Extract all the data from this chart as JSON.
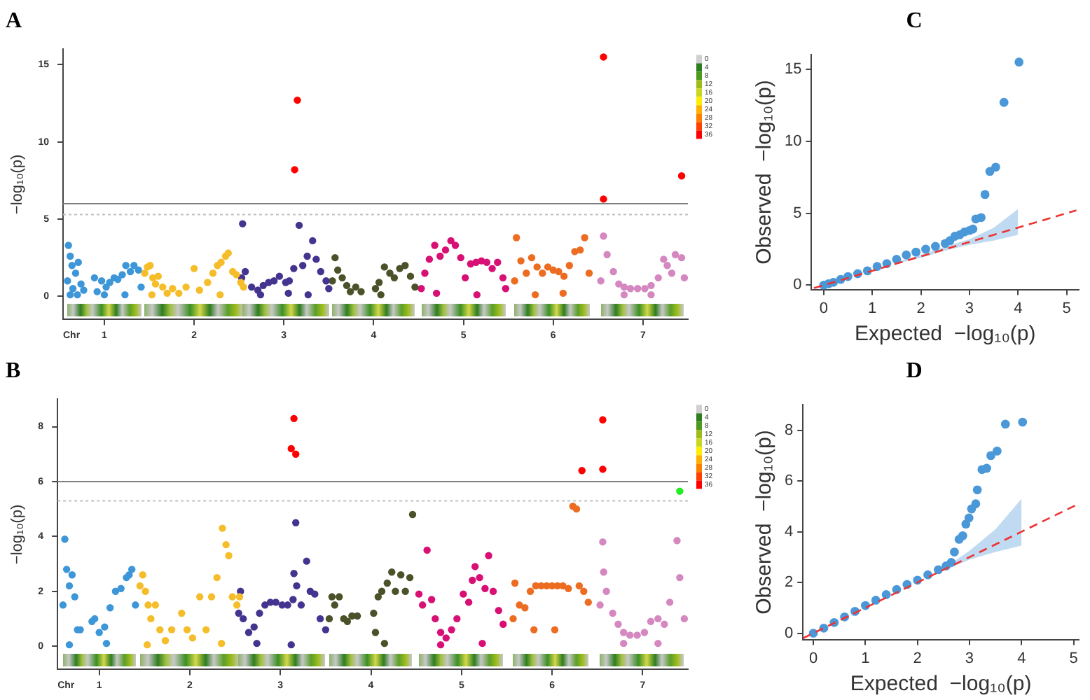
{
  "chart_data": [
    {
      "type": "scatter",
      "title": "A",
      "xlabel": "Chr",
      "ylabel": "−log₁₀(p)",
      "marker": "circle",
      "legend": false,
      "grid": false,
      "xlim": [
        0.54,
        7.5
      ],
      "xticks": [
        1,
        2,
        3,
        4,
        5,
        6,
        7
      ],
      "ylim": [
        -1.5,
        16
      ],
      "yticks": [
        0,
        5,
        10,
        15
      ],
      "clim": [
        0,
        36
      ],
      "cticks": [
        0,
        4,
        8,
        12,
        16,
        20,
        24,
        28,
        32,
        36
      ],
      "ref_lines": [
        {
          "axis": "y",
          "value": 6,
          "color": "#808080",
          "line_style": "solid"
        },
        {
          "axis": "y",
          "value": 5.3,
          "color": "#c0c0c0",
          "line_style": "dotted"
        }
      ],
      "series": [
        {
          "color": "#3d96d8",
          "x": [
            0.59,
            0.6,
            0.62,
            0.64,
            0.65,
            0.68,
            0.71,
            0.74,
            0.77,
            0.89,
            0.92,
            0.97,
            1.02,
            1.06,
            1.11,
            1.15,
            1.2,
            1.24,
            1.29,
            1.33,
            1.38,
            1.41,
            0.62,
            0.7,
            1.0,
            1.23
          ],
          "values": [
            1.0,
            3.3,
            2.6,
            2.0,
            0.5,
            1.5,
            2.2,
            0.8,
            0.4,
            1.2,
            0.3,
            1.0,
            0.6,
            0.9,
            1.2,
            1.1,
            1.4,
            2.0,
            1.6,
            2.0,
            1.7,
            0.6,
            0.1,
            0.1,
            0.1,
            0.1
          ]
        },
        {
          "color": "#f5bd2a",
          "x": [
            1.45,
            1.48,
            1.51,
            1.54,
            1.57,
            1.6,
            1.65,
            1.7,
            1.76,
            1.83,
            1.91,
            2.0,
            2.06,
            2.15,
            2.21,
            2.26,
            2.3,
            2.35,
            2.38,
            2.43,
            2.47,
            2.52,
            2.55,
            1.53,
            2.29
          ],
          "values": [
            1.5,
            1.9,
            2.0,
            1.2,
            0.8,
            1.3,
            0.6,
            0.2,
            0.5,
            0.2,
            0.6,
            1.8,
            0.4,
            0.9,
            1.5,
            2.0,
            2.2,
            2.6,
            2.8,
            1.6,
            1.4,
            0.9,
            0.6,
            0.1,
            0.1
          ]
        },
        {
          "color": "#45348f",
          "x": [
            2.54,
            2.53,
            2.57,
            2.64,
            2.71,
            2.77,
            2.83,
            2.89,
            2.95,
            3.02,
            3.06,
            3.11,
            3.17,
            3.21,
            3.26,
            3.32,
            3.36,
            3.41,
            3.47,
            3.5,
            2.74,
            3.05,
            3.27
          ],
          "values": [
            4.7,
            1.2,
            1.6,
            0.6,
            0.4,
            0.7,
            0.9,
            1.0,
            1.3,
            0.9,
            1.0,
            1.8,
            4.6,
            2.0,
            2.6,
            3.6,
            2.4,
            1.6,
            1.0,
            0.5,
            0.1,
            0.2,
            0.1
          ]
        },
        {
          "color": "#4b522a",
          "x": [
            3.54,
            3.57,
            3.6,
            3.65,
            3.7,
            3.74,
            3.8,
            3.86,
            4.02,
            4.06,
            4.12,
            4.18,
            4.23,
            4.29,
            4.35,
            4.41,
            4.46,
            4.08
          ],
          "values": [
            1.0,
            2.5,
            1.7,
            1.2,
            0.7,
            0.3,
            0.6,
            0.3,
            0.5,
            0.9,
            1.9,
            1.5,
            1.2,
            1.8,
            2.0,
            1.3,
            0.6,
            0.1
          ]
        },
        {
          "color": "#d80f74",
          "x": [
            4.53,
            4.57,
            4.62,
            4.68,
            4.74,
            4.8,
            4.86,
            4.91,
            4.97,
            5.02,
            5.08,
            5.14,
            5.2,
            5.26,
            5.32,
            5.38,
            5.44,
            5.47,
            4.7,
            5.15
          ],
          "values": [
            0.5,
            1.5,
            2.4,
            3.3,
            2.6,
            3.0,
            3.6,
            3.3,
            2.5,
            1.2,
            2.1,
            2.2,
            2.3,
            2.2,
            1.8,
            2.2,
            1.2,
            0.5,
            0.2,
            0.1
          ]
        },
        {
          "color": "#ec6c21",
          "x": [
            5.57,
            5.59,
            5.64,
            5.7,
            5.76,
            5.82,
            5.88,
            5.94,
            6.0,
            6.06,
            6.12,
            6.18,
            6.24,
            6.3,
            6.35,
            6.4,
            5.8,
            6.11
          ],
          "values": [
            1.0,
            3.8,
            2.3,
            1.5,
            2.5,
            1.9,
            1.5,
            1.9,
            1.7,
            1.6,
            1.3,
            2.0,
            2.9,
            3.0,
            3.8,
            1.5,
            0.1,
            0.2
          ]
        },
        {
          "color": "#d587c0",
          "x": [
            6.53,
            6.56,
            6.6,
            6.67,
            6.73,
            6.79,
            6.86,
            6.94,
            7.02,
            7.09,
            7.17,
            7.23,
            7.27,
            7.32,
            7.36,
            7.43,
            7.46,
            6.79,
            7.09
          ],
          "values": [
            1.0,
            3.9,
            2.7,
            1.6,
            0.8,
            0.6,
            0.5,
            0.5,
            0.5,
            0.7,
            1.2,
            2.4,
            2.0,
            1.5,
            2.7,
            2.5,
            1.2,
            0.1,
            0.1
          ]
        },
        {
          "color": "#ff0000",
          "x": [
            3.15,
            3.12,
            6.56,
            6.56,
            7.43
          ],
          "values": [
            12.7,
            8.2,
            15.5,
            6.3,
            7.8
          ]
        }
      ]
    },
    {
      "type": "scatter",
      "title": "C",
      "xlabel": "Expected  −log₁₀(p)",
      "ylabel": "Observed  −log₁₀(p)",
      "marker": "circle",
      "legend": false,
      "grid": false,
      "xlim": [
        -0.25,
        5.25
      ],
      "xticks": [
        0,
        1,
        2,
        3,
        4,
        5
      ],
      "ylim": [
        -0.3,
        16
      ],
      "yticks": [
        0,
        5,
        10,
        15
      ],
      "series": [
        {
          "type": "line",
          "marker": "none",
          "color": "#ee3333",
          "line_style": "dashed",
          "x": [
            -0.2,
            1.5,
            2,
            2.5,
            3,
            3.5,
            4,
            5.2
          ],
          "values": [
            -0.2,
            1.5,
            2,
            2.5,
            3,
            3.5,
            4,
            5.2
          ],
          "lower": [
            null,
            1.5,
            1.9,
            2.4,
            2.8,
            3.1,
            3.5,
            null
          ],
          "upper": [
            null,
            1.6,
            2.1,
            2.7,
            3.2,
            4.0,
            5.3,
            null
          ]
        },
        {
          "color": "#4a98d8",
          "x": [
            0,
            0.1,
            0.2,
            0.35,
            0.5,
            0.7,
            0.9,
            1.1,
            1.3,
            1.5,
            1.7,
            1.9,
            2.1,
            2.3,
            2.5,
            2.6,
            2.7,
            2.8,
            2.9,
            3.0,
            3.07,
            3.13,
            3.24,
            3.32,
            3.42,
            3.54,
            3.71,
            4.02
          ],
          "values": [
            0,
            0.1,
            0.2,
            0.4,
            0.6,
            0.8,
            1.0,
            1.3,
            1.5,
            1.8,
            2.1,
            2.3,
            2.5,
            2.7,
            2.9,
            3.1,
            3.4,
            3.5,
            3.7,
            3.8,
            3.9,
            4.6,
            4.7,
            6.3,
            7.9,
            8.2,
            12.7,
            15.5
          ]
        }
      ]
    },
    {
      "type": "scatter",
      "title": "B",
      "xlabel": "Chr",
      "ylabel": "−log₁₀(p)",
      "marker": "circle",
      "legend": false,
      "grid": false,
      "xlim": [
        0.54,
        7.5
      ],
      "xticks": [
        1,
        2,
        3,
        4,
        5,
        6,
        7
      ],
      "ylim": [
        -0.85,
        9
      ],
      "yticks": [
        0,
        2,
        4,
        6,
        8
      ],
      "clim": [
        0,
        36
      ],
      "cticks": [
        0,
        4,
        8,
        12,
        16,
        20,
        24,
        28,
        32,
        36
      ],
      "ref_lines": [
        {
          "axis": "y",
          "value": 6,
          "color": "#808080",
          "line_style": "solid"
        },
        {
          "axis": "y",
          "value": 5.3,
          "color": "#c0c0c0",
          "line_style": "dotted"
        }
      ],
      "series": [
        {
          "color": "#3d96d8",
          "x": [
            0.6,
            0.62,
            0.64,
            0.67,
            0.7,
            0.73,
            0.76,
            0.79,
            0.92,
            0.95,
            1.0,
            1.06,
            1.12,
            1.18,
            1.24,
            1.3,
            1.33,
            1.36,
            1.4,
            0.67,
            1.08
          ],
          "values": [
            1.5,
            3.9,
            2.8,
            2.2,
            2.6,
            1.8,
            0.6,
            0.6,
            0.9,
            1.0,
            0.5,
            0.7,
            1.4,
            2.0,
            2.1,
            2.5,
            2.6,
            2.8,
            1.5,
            0.05,
            0.1
          ]
        },
        {
          "color": "#f5bd2a",
          "x": [
            1.45,
            1.48,
            1.51,
            1.54,
            1.57,
            1.62,
            1.67,
            1.73,
            1.8,
            1.91,
            1.97,
            2.03,
            2.11,
            2.18,
            2.24,
            2.3,
            2.36,
            2.4,
            2.43,
            2.47,
            2.52,
            2.55,
            1.53,
            2.35
          ],
          "values": [
            2.2,
            2.6,
            2.0,
            1.5,
            1.0,
            1.5,
            0.6,
            0.2,
            0.6,
            1.2,
            0.6,
            0.3,
            1.8,
            0.6,
            1.8,
            2.5,
            4.3,
            3.7,
            3.3,
            1.8,
            1.5,
            1.8,
            0.05,
            0.1
          ]
        },
        {
          "color": "#45348f",
          "x": [
            2.56,
            2.54,
            2.59,
            2.65,
            2.71,
            2.77,
            2.83,
            2.89,
            2.95,
            3.02,
            3.08,
            3.14,
            3.17,
            3.15,
            3.18,
            3.23,
            3.29,
            3.33,
            3.38,
            3.44,
            3.5,
            2.74,
            3.12
          ],
          "values": [
            2.0,
            1.2,
            1.0,
            0.5,
            0.7,
            1.2,
            1.5,
            1.6,
            1.6,
            1.5,
            1.5,
            1.7,
            4.5,
            2.65,
            2.2,
            1.5,
            3.1,
            2.0,
            1.9,
            1.0,
            0.6,
            0.1,
            0.05
          ]
        },
        {
          "color": "#4b522a",
          "x": [
            3.54,
            3.57,
            3.6,
            3.65,
            3.7,
            3.74,
            3.79,
            3.85,
            4.03,
            4.05,
            4.08,
            4.12,
            4.18,
            4.23,
            4.27,
            4.33,
            4.38,
            4.46,
            4.43,
            4.15
          ],
          "values": [
            1.0,
            1.8,
            1.5,
            1.8,
            1.0,
            0.9,
            1.1,
            1.1,
            1.2,
            0.5,
            1.8,
            2.0,
            2.3,
            2.7,
            2.0,
            2.6,
            2.0,
            4.8,
            2.5,
            0.1
          ]
        },
        {
          "color": "#d80f74",
          "x": [
            4.53,
            4.57,
            4.62,
            4.67,
            4.71,
            4.77,
            4.83,
            4.89,
            4.95,
            5.02,
            5.08,
            5.12,
            5.15,
            5.2,
            5.26,
            5.3,
            5.35,
            5.41,
            5.46,
            4.77,
            5.23
          ],
          "values": [
            1.9,
            1.5,
            3.5,
            1.7,
            1.0,
            0.5,
            0.3,
            0.6,
            1.0,
            1.9,
            1.6,
            2.4,
            2.9,
            2.5,
            2.1,
            3.3,
            2.0,
            1.3,
            0.8,
            0.05,
            0.1
          ]
        },
        {
          "color": "#ec6c21",
          "x": [
            5.57,
            5.59,
            5.64,
            5.7,
            5.76,
            5.82,
            5.88,
            5.94,
            6.0,
            6.06,
            6.12,
            6.18,
            6.23,
            6.27,
            6.3,
            6.35,
            6.4,
            5.8,
            6.03
          ],
          "values": [
            1.0,
            2.3,
            1.5,
            1.4,
            2.0,
            2.2,
            2.2,
            2.2,
            2.2,
            2.2,
            2.2,
            2.1,
            5.1,
            5.0,
            2.2,
            2.0,
            1.6,
            0.6,
            0.6
          ]
        },
        {
          "color": "#d587c0",
          "x": [
            6.53,
            6.56,
            6.57,
            6.6,
            6.67,
            6.73,
            6.79,
            6.86,
            6.94,
            7.02,
            7.09,
            7.17,
            7.24,
            7.3,
            7.38,
            7.41,
            7.46,
            6.79,
            7.17
          ],
          "values": [
            1.5,
            3.8,
            2.7,
            2.0,
            1.2,
            0.8,
            0.5,
            0.4,
            0.4,
            0.5,
            0.9,
            1.0,
            0.8,
            1.6,
            3.85,
            2.5,
            1.0,
            0.1,
            0.1
          ]
        },
        {
          "color": "#ff0000",
          "x": [
            3.15,
            3.12,
            3.17,
            6.33,
            6.56,
            6.56
          ],
          "values": [
            8.3,
            7.2,
            7.0,
            6.4,
            6.45,
            8.25
          ]
        },
        {
          "color": "#22ee22",
          "x": [
            7.41
          ],
          "values": [
            5.65
          ]
        }
      ]
    },
    {
      "type": "scatter",
      "title": "D",
      "xlabel": "Expected  −log₁₀(p)",
      "ylabel": "Observed  −log₁₀(p)",
      "marker": "circle",
      "legend": false,
      "grid": false,
      "xlim": [
        -0.2,
        5.1
      ],
      "xticks": [
        0,
        1,
        2,
        3,
        4,
        5
      ],
      "ylim": [
        -0.25,
        9
      ],
      "yticks": [
        0,
        2,
        4,
        6,
        8
      ],
      "series": [
        {
          "type": "line",
          "marker": "none",
          "color": "#ee3333",
          "line_style": "dashed",
          "x": [
            -0.2,
            2.5,
            3,
            3.5,
            4,
            5.1
          ],
          "values": [
            -0.2,
            2.5,
            3,
            3.5,
            4,
            5.1
          ],
          "lower": [
            null,
            2.45,
            2.9,
            3.2,
            3.45,
            null
          ],
          "upper": [
            null,
            2.55,
            3.25,
            4.1,
            5.3,
            null
          ]
        },
        {
          "color": "#4a98d8",
          "x": [
            0,
            0.2,
            0.4,
            0.6,
            0.8,
            1.0,
            1.2,
            1.4,
            1.6,
            1.8,
            2.0,
            2.2,
            2.4,
            2.55,
            2.65,
            2.71,
            2.8,
            2.87,
            2.93,
            2.99,
            3.04,
            3.12,
            3.15,
            3.24,
            3.33,
            3.41,
            3.53,
            3.69,
            4.02
          ],
          "values": [
            0,
            0.2,
            0.42,
            0.64,
            0.86,
            1.09,
            1.3,
            1.52,
            1.72,
            1.92,
            2.09,
            2.3,
            2.5,
            2.65,
            2.79,
            3.2,
            3.7,
            3.84,
            4.3,
            4.54,
            4.9,
            5.1,
            5.65,
            6.45,
            6.5,
            7.0,
            7.18,
            8.24,
            8.32
          ]
        }
      ]
    }
  ]
}
